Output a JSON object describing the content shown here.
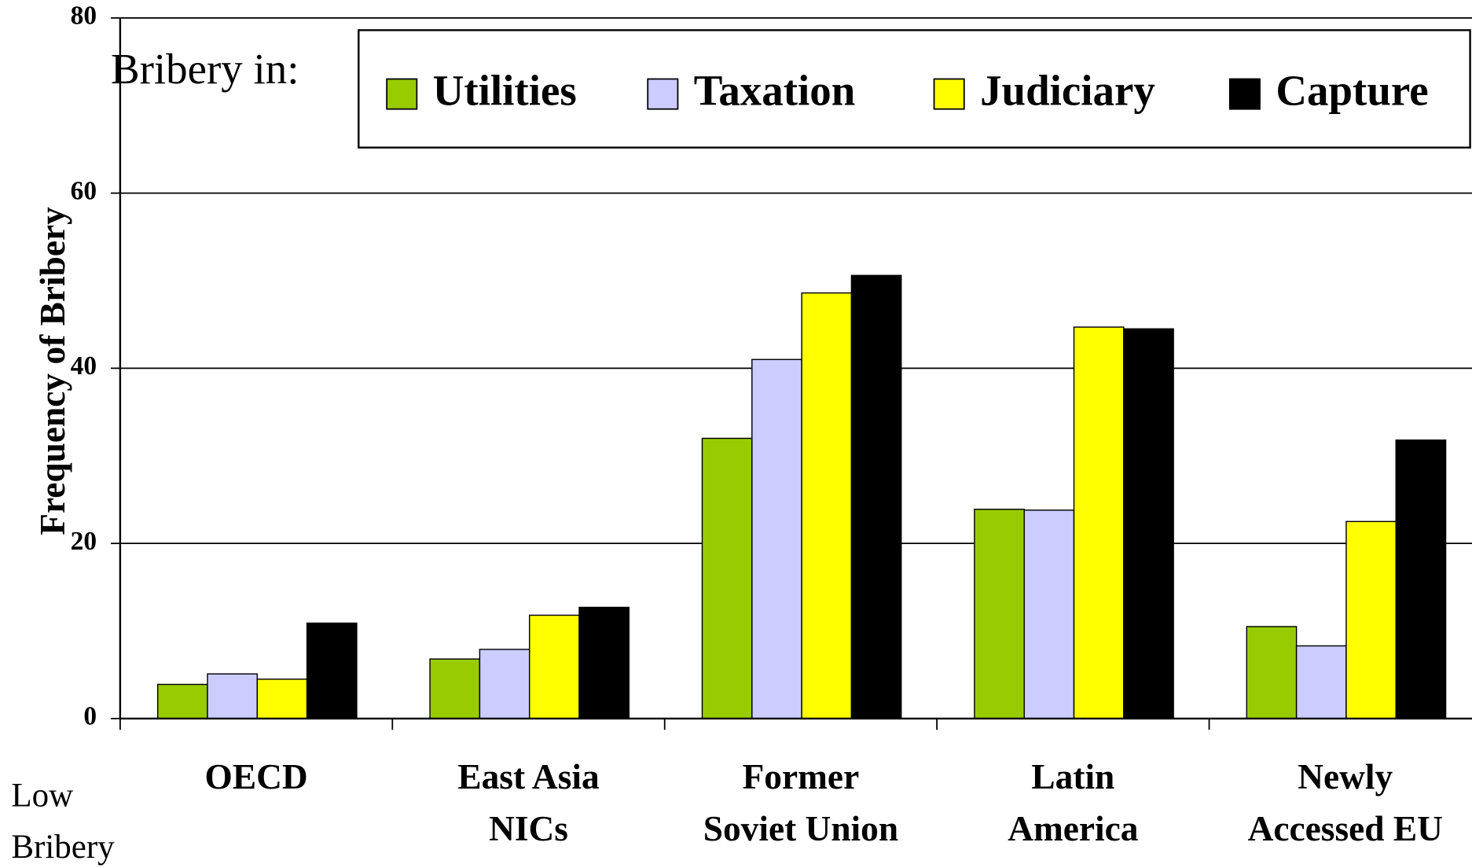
{
  "chart_data": {
    "type": "bar",
    "y_label": "Frequency of Bribery",
    "legend_title": "Bribery in:",
    "annotation": [
      "Low",
      "Bribery"
    ],
    "categories": [
      [
        "OECD"
      ],
      [
        "East Asia",
        "NICs"
      ],
      [
        "Former",
        "Soviet Union"
      ],
      [
        "Latin",
        "America"
      ],
      [
        "Newly",
        "Accessed EU"
      ]
    ],
    "series": [
      {
        "name": "Utilities",
        "color": "#99cc00",
        "values": [
          3.9,
          6.8,
          32,
          23.9,
          10.5
        ]
      },
      {
        "name": "Taxation",
        "color": "#ccccff",
        "values": [
          5.1,
          7.9,
          41,
          23.8,
          8.3
        ]
      },
      {
        "name": "Judiciary",
        "color": "#ffff00",
        "values": [
          4.5,
          11.8,
          48.6,
          44.7,
          22.5
        ]
      },
      {
        "name": "Capture",
        "color": "#000000",
        "values": [
          10.9,
          12.7,
          50.6,
          44.5,
          31.8
        ]
      }
    ],
    "ylim": [
      0,
      80
    ],
    "yticks": [
      0,
      20,
      40,
      60,
      80
    ],
    "grid": true
  }
}
